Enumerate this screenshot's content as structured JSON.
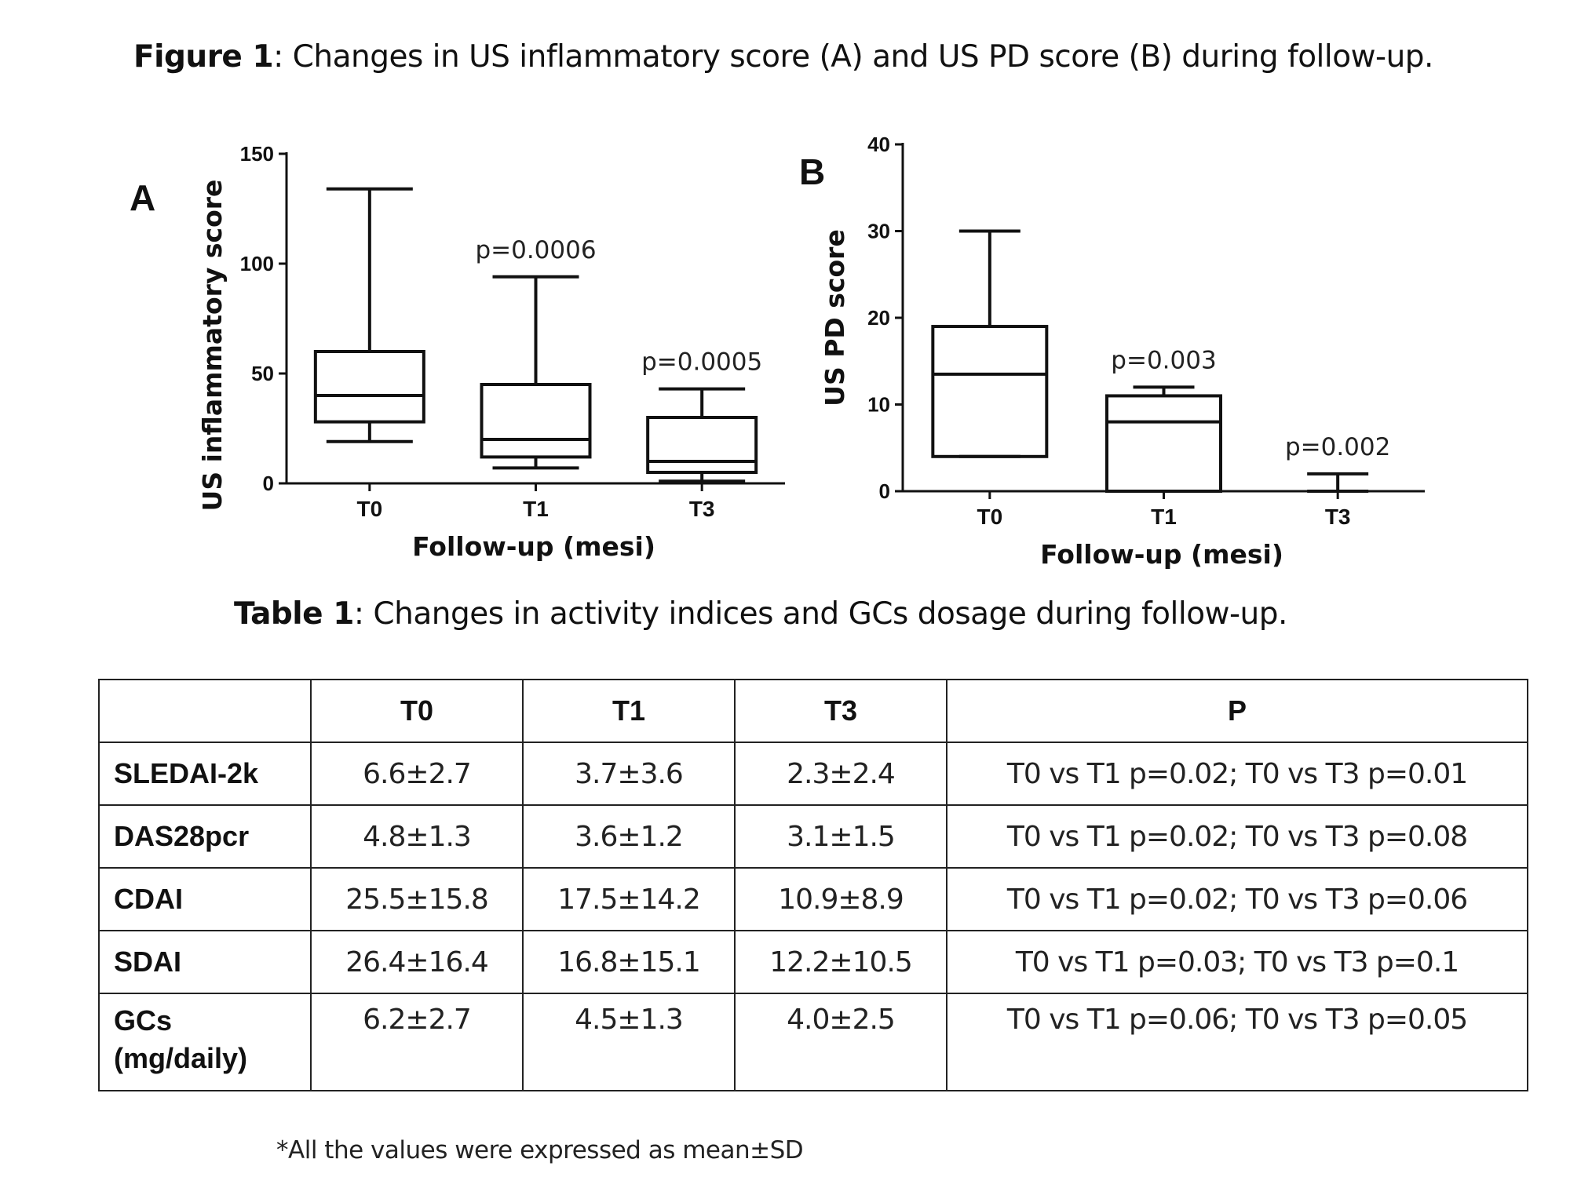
{
  "figure_caption": {
    "bold": "Figure 1",
    "rest": ": Changes in US inflammatory score (A) and US PD score (B) during follow-up."
  },
  "chart_data": [
    {
      "type": "box",
      "panel": "A",
      "ylabel": "US inflammatory score",
      "xlabel": "Follow-up (mesi)",
      "ylim": [
        0,
        150
      ],
      "yticks": [
        "0",
        "50",
        "100",
        "150"
      ],
      "categories": [
        "T0",
        "T1",
        "T3"
      ],
      "boxes": [
        {
          "min": 19,
          "q1": 28,
          "median": 40,
          "q3": 60,
          "max": 134
        },
        {
          "min": 7,
          "q1": 12,
          "median": 20,
          "q3": 45,
          "max": 94
        },
        {
          "min": 1,
          "q1": 5,
          "median": 10,
          "q3": 30,
          "max": 43
        }
      ],
      "annotations": [
        "",
        "p=0.0006",
        "p=0.0005"
      ]
    },
    {
      "type": "box",
      "panel": "B",
      "ylabel": "US PD score",
      "xlabel": "Follow-up (mesi)",
      "ylim": [
        0,
        40
      ],
      "yticks": [
        "0",
        "10",
        "20",
        "30",
        "40"
      ],
      "categories": [
        "T0",
        "T1",
        "T3"
      ],
      "boxes": [
        {
          "min": 4,
          "q1": 4,
          "median": 13.5,
          "q3": 19,
          "max": 30
        },
        {
          "min": 0,
          "q1": 0,
          "median": 8,
          "q3": 11,
          "max": 12
        },
        {
          "min": 0,
          "q1": 0,
          "median": 0,
          "q3": 0,
          "max": 2
        }
      ],
      "annotations": [
        "",
        "p=0.003",
        "p=0.002"
      ]
    }
  ],
  "table_caption": {
    "bold": "Table 1",
    "rest": ": Changes in activity indices and GCs dosage during follow-up."
  },
  "table": {
    "headers": [
      "",
      "T0",
      "T1",
      "T3",
      "P"
    ],
    "rows": [
      {
        "label": "SLEDAI-2k",
        "t0": "6.6±2.7",
        "t1": "3.7±3.6",
        "t3": "2.3±2.4",
        "p": "T0 vs T1  p=0.02; T0 vs T3 p=0.01"
      },
      {
        "label": "DAS28pcr",
        "t0": "4.8±1.3",
        "t1": "3.6±1.2",
        "t3": "3.1±1.5",
        "p": "T0 vs T1  p=0.02; T0 vs T3 p=0.08"
      },
      {
        "label": "CDAI",
        "t0": "25.5±15.8",
        "t1": "17.5±14.2",
        "t3": "10.9±8.9",
        "p": "T0 vs T1  p=0.02; T0 vs T3 p=0.06"
      },
      {
        "label": "SDAI",
        "t0": "26.4±16.4",
        "t1": "16.8±15.1",
        "t3": "12.2±10.5",
        "p": "T0 vs T1  p=0.03; T0 vs T3 p=0.1"
      },
      {
        "label_line1": "GCs",
        "label_line2": "(mg/daily)",
        "t0": "6.2±2.7",
        "t1": "4.5±1.3",
        "t3": "4.0±2.5",
        "p": "T0 vs T1  p=0.06; T0 vs T3 p=0.05"
      }
    ]
  },
  "footnote": "*All the values were expressed as mean±SD"
}
